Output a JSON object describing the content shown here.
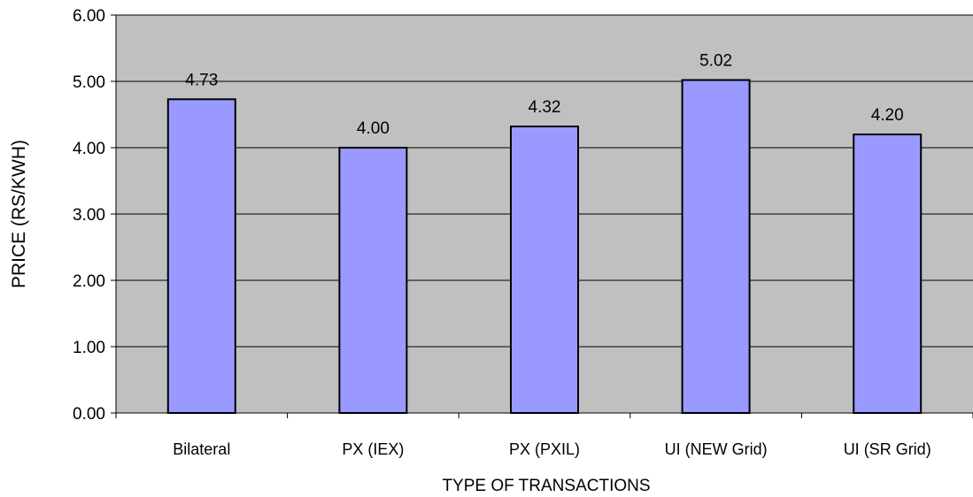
{
  "chart_data": {
    "type": "bar",
    "categories": [
      "Bilateral",
      "PX (IEX)",
      "PX (PXIL)",
      "UI (NEW Grid)",
      "UI (SR Grid)"
    ],
    "values": [
      4.73,
      4.0,
      4.32,
      5.02,
      4.2
    ],
    "data_labels": [
      "4.73",
      "4.00",
      "4.32",
      "5.02",
      "4.20"
    ],
    "title": "",
    "xlabel": "TYPE OF TRANSACTIONS",
    "ylabel": "PRICE (RS/KWH)",
    "ylim": [
      0,
      6
    ],
    "yticks": [
      "0.00",
      "1.00",
      "2.00",
      "3.00",
      "4.00",
      "5.00",
      "6.00"
    ],
    "grid": true,
    "legend": "none",
    "colors": {
      "plot_background": "#c0c0c0",
      "bar_fill": "#9999ff",
      "bar_stroke": "#000000",
      "gridline": "#000000"
    }
  }
}
